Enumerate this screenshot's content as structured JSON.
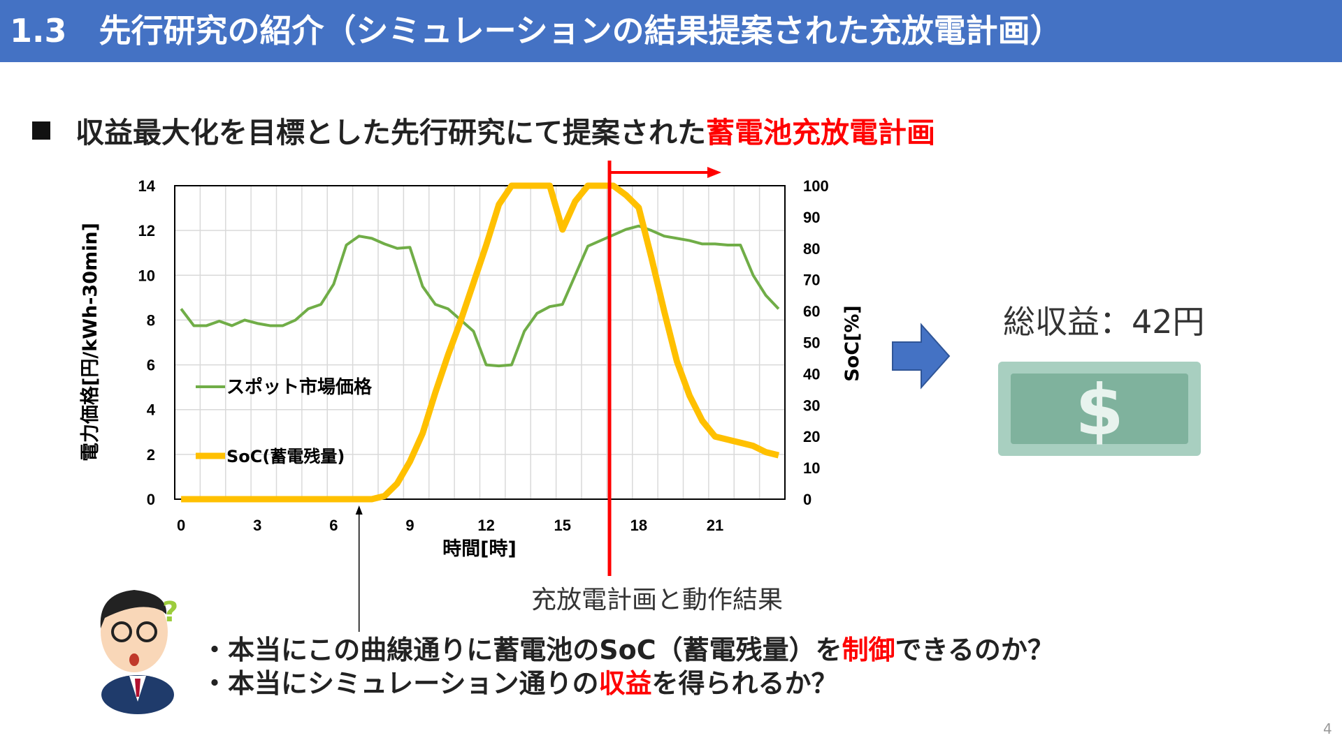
{
  "header": {
    "title": "1.3　先行研究の紹介（シミュレーションの結果提案された充放電計画）"
  },
  "subtitle": {
    "text": "収益最大化を目標とした先行研究にて提案された",
    "highlight": "蓄電池充放電計画"
  },
  "chart_data": {
    "type": "line",
    "x": [
      0,
      0.5,
      1,
      1.5,
      2,
      2.5,
      3,
      3.5,
      4,
      4.5,
      5,
      5.5,
      6,
      6.5,
      7,
      7.5,
      8,
      8.5,
      9,
      9.5,
      10,
      10.5,
      11,
      11.5,
      12,
      12.5,
      13,
      13.5,
      14,
      14.5,
      15,
      15.5,
      16,
      16.5,
      17,
      17.5,
      18,
      18.5,
      19,
      19.5,
      20,
      20.5,
      21,
      21.5,
      22,
      22.5,
      23,
      23.5
    ],
    "series": [
      {
        "name": "スポット市場価格",
        "axis": "left",
        "color": "#70AD47",
        "values": [
          8.5,
          7.75,
          7.75,
          7.95,
          7.75,
          8.0,
          7.85,
          7.75,
          7.75,
          8.0,
          8.5,
          8.7,
          9.6,
          11.35,
          11.75,
          11.65,
          11.4,
          11.2,
          11.25,
          9.5,
          8.7,
          8.5,
          8.0,
          7.5,
          6.0,
          5.95,
          6.0,
          7.5,
          8.3,
          8.6,
          8.7,
          10.0,
          11.3,
          11.55,
          11.8,
          12.05,
          12.2,
          12.0,
          11.75,
          11.65,
          11.55,
          11.4,
          11.4,
          11.35,
          11.35,
          10.0,
          9.1,
          8.5
        ]
      },
      {
        "name": "SoC(蓄電残量)",
        "axis": "right",
        "color": "#FFC000",
        "values": [
          0,
          0,
          0,
          0,
          0,
          0,
          0,
          0,
          0,
          0,
          0,
          0,
          0,
          0,
          0,
          0,
          1,
          5,
          12,
          21,
          34,
          46,
          57,
          69,
          81,
          94,
          100,
          100,
          100,
          100,
          86,
          95,
          100,
          100,
          100,
          97,
          93,
          77,
          60,
          44,
          33,
          25,
          20,
          19,
          18,
          17,
          15,
          14
        ]
      }
    ],
    "xlabel": "時間[時]",
    "ylabel": "電力価格[円/kWh-30min]",
    "y2label": "SoC[%]",
    "xticks": [
      "0",
      "3",
      "6",
      "9",
      "12",
      "15",
      "18",
      "21"
    ],
    "yticks": [
      "0",
      "2",
      "4",
      "6",
      "8",
      "10",
      "12",
      "14"
    ],
    "y2ticks": [
      "0",
      "10",
      "20",
      "30",
      "40",
      "50",
      "60",
      "70",
      "80",
      "90",
      "100"
    ],
    "ylim": [
      0,
      14
    ],
    "y2lim": [
      0,
      100
    ],
    "grid": true,
    "legend": "left",
    "annotations": {
      "plan_start_hour": 16.85,
      "marker_hour": 7
    }
  },
  "caption": "充放電計画と動作結果",
  "result": {
    "total_label": "総収益：42円",
    "money_icon": "dollar-bill-icon"
  },
  "questions": [
    {
      "pre": "・本当にこの曲線通りに蓄電池のSoC（蓄電残量）を",
      "hl": "制御",
      "post": "できるのか？"
    },
    {
      "pre": "・本当にシミュレーション通りの",
      "hl": "収益",
      "post": "を得られるか？"
    }
  ],
  "page_number": "4"
}
